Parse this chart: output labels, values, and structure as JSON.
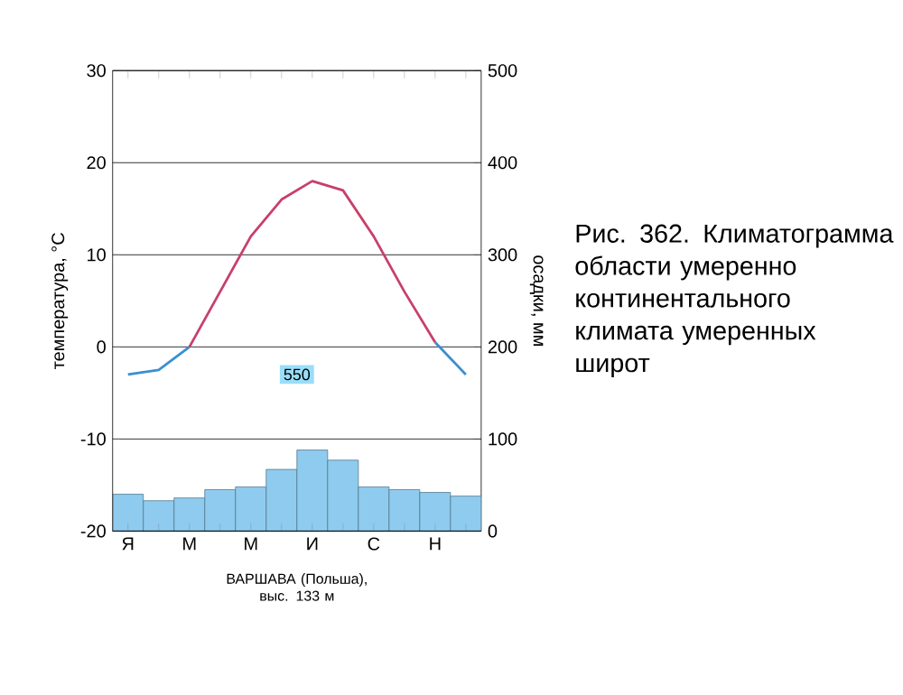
{
  "chart_data": {
    "type": "line",
    "ylabel": "температура, °С",
    "y2label": "осадки, мм",
    "categories": [
      "Я",
      null,
      "М",
      null,
      "М",
      null,
      "И",
      null,
      "С",
      null,
      "Н",
      null
    ],
    "series": [
      {
        "type": "bar",
        "axis": "y2",
        "color": "#8fcbee",
        "values": [
          40,
          33,
          36,
          45,
          48,
          67,
          88,
          77,
          48,
          45,
          42,
          38
        ]
      },
      {
        "color": "#3a8fd0",
        "values": [
          -3,
          -2.5,
          0,
          null,
          null,
          null,
          null,
          null,
          null,
          null,
          0.5,
          -3
        ]
      },
      {
        "color": "#c8406a",
        "values": [
          null,
          null,
          0,
          6,
          12,
          16,
          18,
          17,
          12,
          6,
          0.5,
          null
        ]
      }
    ],
    "ylim": [
      -20,
      30
    ],
    "yticks": [
      -20,
      -10,
      0,
      10,
      20,
      30
    ],
    "y2lim": [
      0,
      500
    ],
    "y2ticks": [
      0,
      100,
      200,
      300,
      400,
      500
    ],
    "grid": "y",
    "annotations": [
      "550",
      "ВАРШАВА (Польша), выс. 133 м",
      "Рис. 362. Климатограмма области умеренно континентального климата умеренных широт"
    ]
  }
}
